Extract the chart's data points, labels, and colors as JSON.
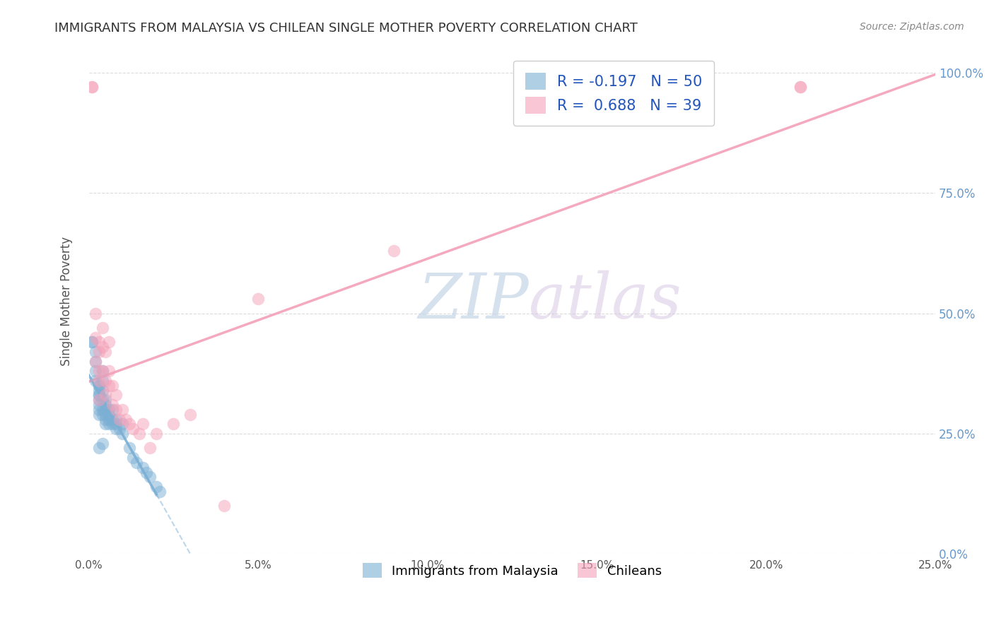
{
  "title": "IMMIGRANTS FROM MALAYSIA VS CHILEAN SINGLE MOTHER POVERTY CORRELATION CHART",
  "source": "Source: ZipAtlas.com",
  "ylabel": "Single Mother Poverty",
  "xlim": [
    0.0,
    0.25
  ],
  "ylim": [
    0.0,
    1.05
  ],
  "xticks": [
    0.0,
    0.05,
    0.1,
    0.15,
    0.2,
    0.25
  ],
  "yticks": [
    0.0,
    0.25,
    0.5,
    0.75,
    1.0
  ],
  "ytick_labels_right": [
    "0.0%",
    "25.0%",
    "50.0%",
    "75.0%",
    "100.0%"
  ],
  "xtick_labels": [
    "0.0%",
    "5.0%",
    "10.0%",
    "15.0%",
    "20.0%",
    "25.0%"
  ],
  "series1_label": "Immigrants from Malaysia",
  "series2_label": "Chileans",
  "series1_color": "#7bafd4",
  "series2_color": "#f4a0b8",
  "watermark_zip": "ZIP",
  "watermark_atlas": "atlas",
  "background_color": "#ffffff",
  "grid_color": "#d8d8d8",
  "title_color": "#333333",
  "right_tick_color": "#6699cc",
  "series1_x": [
    0.001,
    0.001,
    0.002,
    0.002,
    0.002,
    0.002,
    0.003,
    0.003,
    0.003,
    0.003,
    0.003,
    0.003,
    0.003,
    0.003,
    0.003,
    0.004,
    0.004,
    0.004,
    0.004,
    0.004,
    0.004,
    0.005,
    0.005,
    0.005,
    0.005,
    0.005,
    0.005,
    0.006,
    0.006,
    0.006,
    0.006,
    0.007,
    0.007,
    0.007,
    0.008,
    0.008,
    0.008,
    0.009,
    0.01,
    0.01,
    0.012,
    0.013,
    0.014,
    0.016,
    0.017,
    0.018,
    0.02,
    0.021,
    0.003,
    0.004
  ],
  "series1_y": [
    0.44,
    0.44,
    0.42,
    0.4,
    0.38,
    0.36,
    0.35,
    0.34,
    0.33,
    0.32,
    0.31,
    0.3,
    0.29,
    0.35,
    0.33,
    0.32,
    0.3,
    0.29,
    0.34,
    0.36,
    0.38,
    0.3,
    0.31,
    0.29,
    0.28,
    0.32,
    0.27,
    0.3,
    0.29,
    0.28,
    0.27,
    0.28,
    0.27,
    0.3,
    0.27,
    0.28,
    0.26,
    0.26,
    0.25,
    0.27,
    0.22,
    0.2,
    0.19,
    0.18,
    0.17,
    0.16,
    0.14,
    0.13,
    0.22,
    0.23
  ],
  "series2_x": [
    0.001,
    0.001,
    0.002,
    0.002,
    0.002,
    0.003,
    0.003,
    0.003,
    0.003,
    0.003,
    0.004,
    0.004,
    0.004,
    0.005,
    0.005,
    0.005,
    0.006,
    0.006,
    0.006,
    0.007,
    0.007,
    0.008,
    0.008,
    0.009,
    0.01,
    0.011,
    0.012,
    0.013,
    0.015,
    0.016,
    0.018,
    0.02,
    0.025,
    0.03,
    0.04,
    0.05,
    0.09,
    0.21,
    0.21
  ],
  "series2_y": [
    0.97,
    0.97,
    0.45,
    0.4,
    0.5,
    0.44,
    0.42,
    0.38,
    0.36,
    0.32,
    0.47,
    0.43,
    0.38,
    0.42,
    0.36,
    0.33,
    0.44,
    0.38,
    0.35,
    0.35,
    0.31,
    0.33,
    0.3,
    0.28,
    0.3,
    0.28,
    0.27,
    0.26,
    0.25,
    0.27,
    0.22,
    0.25,
    0.27,
    0.29,
    0.1,
    0.53,
    0.63,
    0.97,
    0.97
  ]
}
